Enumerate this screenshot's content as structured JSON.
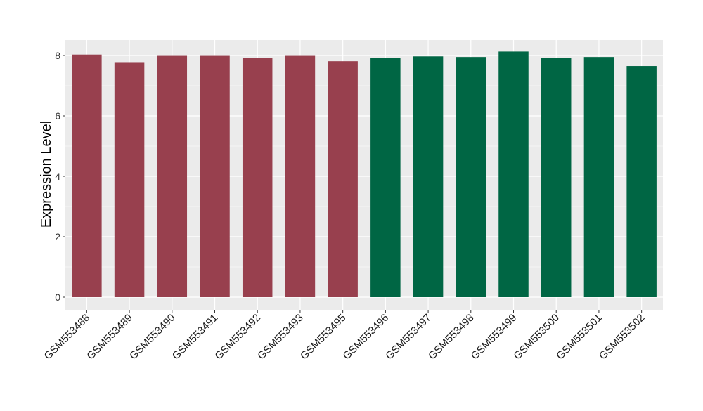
{
  "chart_data": {
    "type": "bar",
    "ylabel": "Expression Level",
    "xlabel": "",
    "title": "",
    "ylim": [
      0,
      8.5
    ],
    "yticks": [
      0,
      2,
      4,
      6,
      8
    ],
    "grid": true,
    "legend": "none",
    "panel_color": "#ebebeb",
    "grid_color": "#ffffff",
    "categories": [
      "GSM553488",
      "GSM553489",
      "GSM553490",
      "GSM553491",
      "GSM553492",
      "GSM553493",
      "GSM553495",
      "GSM553496",
      "GSM553497",
      "GSM553498",
      "GSM553499",
      "GSM553500",
      "GSM553501",
      "GSM553502"
    ],
    "values": [
      8.03,
      7.78,
      8.01,
      8.01,
      7.93,
      8.01,
      7.81,
      7.93,
      7.97,
      7.95,
      8.13,
      7.93,
      7.95,
      7.65
    ],
    "colors": [
      "#98404e",
      "#98404e",
      "#98404e",
      "#98404e",
      "#98404e",
      "#98404e",
      "#98404e",
      "#006644",
      "#006644",
      "#006644",
      "#006644",
      "#006644",
      "#006644",
      "#006644"
    ]
  }
}
